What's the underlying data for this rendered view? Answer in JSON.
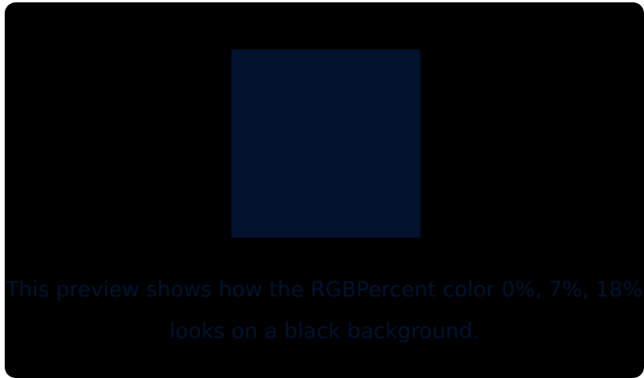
{
  "preview": {
    "swatch_color": "#00122E",
    "background_color": "#000000",
    "caption_color": "#00122E",
    "caption": "This preview shows how the RGBPercent color 0%, 7%, 18% looks on a black background."
  }
}
